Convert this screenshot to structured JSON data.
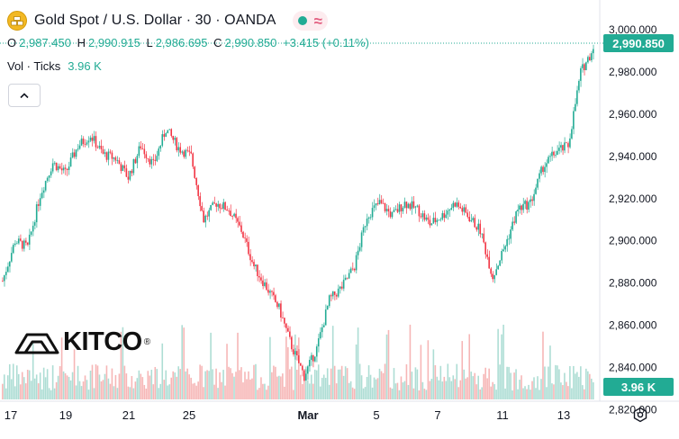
{
  "header": {
    "title": "Gold Spot / U.S. Dollar · 30 · OANDA",
    "symbol_icon": "gold-bars-icon",
    "status_icons": [
      "market-open-dot-icon",
      "delayed-approx-icon"
    ]
  },
  "ohlc": {
    "o_label": "O",
    "o": "2,987.450",
    "h_label": "H",
    "h": "2,990.915",
    "l_label": "L",
    "l": "2,986.695",
    "c_label": "C",
    "c": "2,990.850",
    "change": "+3.415 (+0.11%)"
  },
  "volume": {
    "label": "Vol · Ticks",
    "value": "3.96 K"
  },
  "price_axis": {
    "ticks": [
      "3,000.000",
      "2,980.000",
      "2,960.000",
      "2,940.000",
      "2,920.000",
      "2,900.000",
      "2,880.000",
      "2,860.000",
      "2,840.000",
      "2,820.000"
    ],
    "last_price_label": "2,990.850",
    "volume_label": "3.96 K"
  },
  "time_axis": {
    "ticks": [
      "17",
      "19",
      "21",
      "25",
      "Mar",
      "5",
      "7",
      "11",
      "13"
    ]
  },
  "watermark": {
    "text": "KITCO",
    "mark": "®"
  },
  "colors": {
    "up": "#22ab94",
    "down": "#f23645",
    "vol_up": "#9fd7cc",
    "vol_down": "#f4a9a9"
  },
  "chart_data": {
    "type": "candlestick",
    "timeframe": "30",
    "y_range": [
      2830,
      3003
    ],
    "last_price": 2990.85,
    "price_path": [
      {
        "x": "17",
        "y": 2881
      },
      {
        "x": "17",
        "y": 2900
      },
      {
        "x": "18",
        "y": 2897
      },
      {
        "x": "18",
        "y": 2922
      },
      {
        "x": "19",
        "y": 2937
      },
      {
        "x": "19",
        "y": 2932
      },
      {
        "x": "20",
        "y": 2945
      },
      {
        "x": "20",
        "y": 2950
      },
      {
        "x": "20",
        "y": 2941
      },
      {
        "x": "21",
        "y": 2939
      },
      {
        "x": "21",
        "y": 2930
      },
      {
        "x": "21",
        "y": 2945
      },
      {
        "x": "24",
        "y": 2936
      },
      {
        "x": "24",
        "y": 2953
      },
      {
        "x": "24",
        "y": 2944
      },
      {
        "x": "25",
        "y": 2940
      },
      {
        "x": "25",
        "y": 2910
      },
      {
        "x": "25",
        "y": 2918
      },
      {
        "x": "26",
        "y": 2915
      },
      {
        "x": "26",
        "y": 2905
      },
      {
        "x": "27",
        "y": 2888
      },
      {
        "x": "27",
        "y": 2878
      },
      {
        "x": "28",
        "y": 2868
      },
      {
        "x": "28",
        "y": 2850
      },
      {
        "x": "28",
        "y": 2836
      },
      {
        "x": "Mar",
        "y": 2849
      },
      {
        "x": "Mar",
        "y": 2872
      },
      {
        "x": "3",
        "y": 2878
      },
      {
        "x": "3",
        "y": 2888
      },
      {
        "x": "4",
        "y": 2912
      },
      {
        "x": "4",
        "y": 2918
      },
      {
        "x": "5",
        "y": 2912
      },
      {
        "x": "5",
        "y": 2918
      },
      {
        "x": "6",
        "y": 2915
      },
      {
        "x": "6",
        "y": 2908
      },
      {
        "x": "7",
        "y": 2912
      },
      {
        "x": "7",
        "y": 2918
      },
      {
        "x": "7",
        "y": 2912
      },
      {
        "x": "10",
        "y": 2905
      },
      {
        "x": "10",
        "y": 2883
      },
      {
        "x": "11",
        "y": 2898
      },
      {
        "x": "11",
        "y": 2915
      },
      {
        "x": "12",
        "y": 2918
      },
      {
        "x": "12",
        "y": 2935
      },
      {
        "x": "13",
        "y": 2942
      },
      {
        "x": "13",
        "y": 2945
      },
      {
        "x": "13",
        "y": 2980
      },
      {
        "x": "14",
        "y": 2991
      }
    ]
  }
}
